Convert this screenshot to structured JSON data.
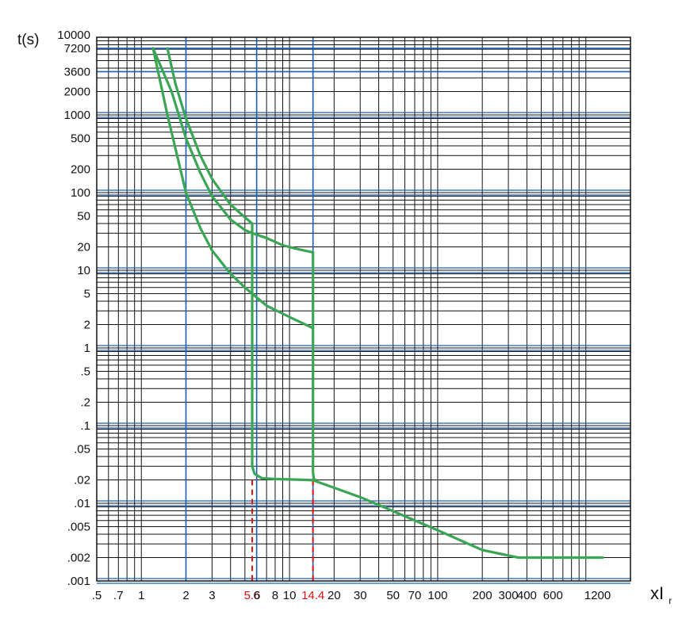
{
  "chart_data": {
    "type": "line",
    "title": "",
    "ylabel": "t(s)",
    "xlabel_main": "xI",
    "xlabel_sub": "r",
    "x_scale": "log",
    "y_scale": "log",
    "xlim": [
      0.5,
      2000
    ],
    "ylim": [
      0.001,
      10000
    ],
    "grid": true,
    "grid_color": "#111111",
    "major_grid_color": "#1a5fb4",
    "curve_color": "#3aa655",
    "marker_color": "#e01010",
    "x_ticks": [
      {
        "v": 0.5,
        "label": ".5"
      },
      {
        "v": 0.7,
        "label": ".7"
      },
      {
        "v": 1,
        "label": "1"
      },
      {
        "v": 2,
        "label": "2"
      },
      {
        "v": 3,
        "label": "3"
      },
      {
        "v": 5.6,
        "label": "5.6",
        "highlight": true
      },
      {
        "v": 6,
        "label": "6"
      },
      {
        "v": 8,
        "label": "8"
      },
      {
        "v": 10,
        "label": "10"
      },
      {
        "v": 14.4,
        "label": "14.4",
        "highlight": true
      },
      {
        "v": 20,
        "label": "20"
      },
      {
        "v": 30,
        "label": "30"
      },
      {
        "v": 50,
        "label": "50"
      },
      {
        "v": 70,
        "label": "70"
      },
      {
        "v": 100,
        "label": "100"
      },
      {
        "v": 200,
        "label": "200"
      },
      {
        "v": 300,
        "label": "300"
      },
      {
        "v": 400,
        "label": "400"
      },
      {
        "v": 600,
        "label": "600"
      },
      {
        "v": 1200,
        "label": "1200"
      }
    ],
    "y_ticks": [
      {
        "v": 10000,
        "label": "10000"
      },
      {
        "v": 7200,
        "label": "7200"
      },
      {
        "v": 3600,
        "label": "3600"
      },
      {
        "v": 2000,
        "label": "2000"
      },
      {
        "v": 1000,
        "label": "1000"
      },
      {
        "v": 500,
        "label": "500"
      },
      {
        "v": 200,
        "label": "200"
      },
      {
        "v": 100,
        "label": "100"
      },
      {
        "v": 50,
        "label": "50"
      },
      {
        "v": 20,
        "label": "20"
      },
      {
        "v": 10,
        "label": "10"
      },
      {
        "v": 5,
        "label": "5"
      },
      {
        "v": 2,
        "label": "2"
      },
      {
        "v": 1,
        "label": "1"
      },
      {
        "v": 0.5,
        "label": ".5"
      },
      {
        "v": 0.2,
        "label": ".2"
      },
      {
        "v": 0.1,
        "label": ".1"
      },
      {
        "v": 0.05,
        "label": ".05"
      },
      {
        "v": 0.02,
        "label": ".02"
      },
      {
        "v": 0.01,
        "label": ".01"
      },
      {
        "v": 0.005,
        "label": ".005"
      },
      {
        "v": 0.002,
        "label": ".002"
      },
      {
        "v": 0.001,
        "label": ".001"
      }
    ],
    "highlight_y_lines": [
      7200,
      3600
    ],
    "highlight_x_lines": [
      2,
      6,
      14.4
    ],
    "dashed_markers": [
      {
        "x": 5.6,
        "y_top": 0.02
      },
      {
        "x": 14.4,
        "y_top": 0.02
      }
    ],
    "series": [
      {
        "points": [
          [
            1.2,
            7200
          ],
          [
            1.6,
            2000
          ],
          [
            2,
            500
          ],
          [
            2.5,
            180
          ],
          [
            3,
            90
          ],
          [
            4,
            45
          ],
          [
            5,
            33
          ],
          [
            5.6,
            30
          ],
          [
            7,
            26
          ],
          [
            9,
            21
          ],
          [
            11,
            19
          ],
          [
            14.4,
            17
          ]
        ]
      },
      {
        "points": [
          [
            1.5,
            7200
          ],
          [
            1.7,
            2500
          ],
          [
            2,
            900
          ],
          [
            2.5,
            300
          ],
          [
            3,
            150
          ],
          [
            4,
            70
          ],
          [
            5,
            48
          ],
          [
            5.6,
            40
          ]
        ]
      },
      {
        "points": [
          [
            5.6,
            40
          ],
          [
            5.6,
            0.03
          ],
          [
            5.8,
            0.024
          ],
          [
            6.5,
            0.021
          ],
          [
            8,
            0.0205
          ],
          [
            10,
            0.0203
          ],
          [
            13,
            0.02
          ],
          [
            14.4,
            0.0198
          ],
          [
            30,
            0.012
          ],
          [
            100,
            0.0045
          ],
          [
            200,
            0.0025
          ],
          [
            350,
            0.002
          ],
          [
            1300,
            0.002
          ]
        ]
      },
      {
        "points": [
          [
            1.2,
            7200
          ],
          [
            1.5,
            1000
          ],
          [
            2,
            100
          ],
          [
            2.5,
            35
          ],
          [
            3,
            18
          ],
          [
            4,
            9
          ],
          [
            5,
            6
          ],
          [
            5.6,
            5
          ],
          [
            7,
            3.5
          ],
          [
            10,
            2.5
          ],
          [
            14.4,
            1.8
          ]
        ]
      },
      {
        "points": [
          [
            14.4,
            17
          ],
          [
            14.4,
            0.025
          ],
          [
            14.6,
            0.0205
          ],
          [
            15,
            0.02
          ]
        ]
      }
    ]
  }
}
